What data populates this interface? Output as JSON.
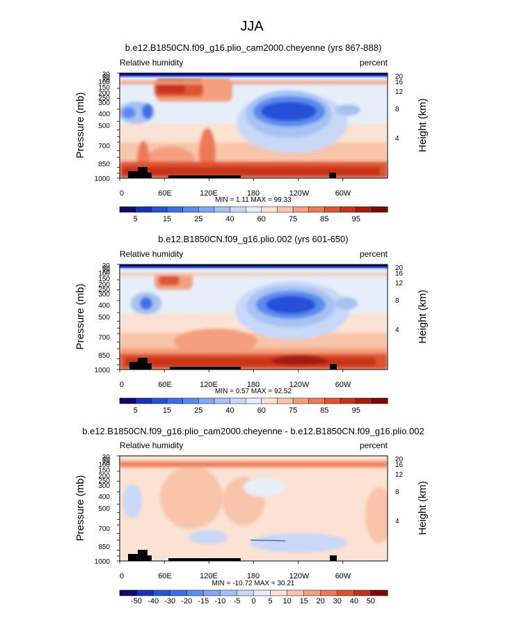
{
  "season": "JJA",
  "axes": {
    "left_label": "Pressure  (mb)",
    "right_label": "Height  (km)",
    "pressure_ticks": [
      "30",
      "50",
      "70",
      "100",
      "150",
      "200",
      "250",
      "300",
      "400",
      "500",
      "700",
      "850",
      "1000"
    ],
    "pressure_values": [
      30,
      50,
      70,
      100,
      150,
      200,
      250,
      300,
      400,
      500,
      700,
      850,
      1000
    ],
    "height_ticks": [
      "20",
      "16",
      "12",
      "8",
      "4"
    ],
    "height_values": [
      20,
      16,
      12,
      8,
      4
    ],
    "lon_ticks": [
      "0",
      "60E",
      "120E",
      "180",
      "120W",
      "60W"
    ],
    "lon_values": [
      0,
      60,
      120,
      180,
      240,
      300
    ],
    "lon_range": [
      0,
      360
    ],
    "pressure_range": [
      30,
      1000
    ]
  },
  "panels": [
    {
      "title": "b.e12.B1850CN.f09_g16.plio_cam2000.cheyenne (yrs 867-888)",
      "variable": "Relative humidity",
      "units": "percent",
      "stats": "MIN =    1.11   MAX =   99.33",
      "kind": "abs"
    },
    {
      "title": "b.e12.B1850CN.f09_g16.plio.002 (yrs 601-650)",
      "variable": "Relative humidity",
      "units": "percent",
      "stats": "MIN =    0.57   MAX =   92.52",
      "kind": "abs"
    },
    {
      "title": "b.e12.B1850CN.f09_g16.plio_cam2000.cheyenne - b.e12.B1850CN.f09_g16.plio.002",
      "variable": "Relative humidity",
      "units": "percent",
      "stats": "MIN = -10.72   MAX =   30.21",
      "kind": "diff"
    }
  ],
  "colorbars": [
    {
      "labels": [
        "5",
        "15",
        "25",
        "40",
        "60",
        "75",
        "85",
        "95"
      ],
      "levels": [
        5,
        10,
        15,
        20,
        25,
        30,
        40,
        50,
        60,
        70,
        75,
        80,
        85,
        90,
        95
      ],
      "colors": [
        "#0c0c72",
        "#1a30b8",
        "#2850d8",
        "#3c6ee8",
        "#5a8cf0",
        "#82a8f0",
        "#a6c2f2",
        "#c8d8f6",
        "#e6eefa",
        "#fbe2d2",
        "#f8c4aa",
        "#f4a080",
        "#ec7a58",
        "#de5432",
        "#c83218",
        "#a51c0c",
        "#7a0a04"
      ]
    },
    {
      "labels": [
        "-50",
        "-40",
        "-30",
        "-20",
        "-15",
        "-10",
        "-5",
        "0",
        "5",
        "10",
        "15",
        "20",
        "30",
        "40",
        "50"
      ],
      "levels": [
        -50,
        -40,
        -30,
        -20,
        -15,
        -10,
        -5,
        0,
        5,
        10,
        15,
        20,
        30,
        40,
        50
      ],
      "colors": [
        "#0c0c72",
        "#1a30b8",
        "#2850d8",
        "#3c6ee8",
        "#5a8cf0",
        "#82a8f0",
        "#a6c2f2",
        "#c8d8f6",
        "#e6eefa",
        "#fbe2d2",
        "#f8c4aa",
        "#f4a080",
        "#ec7a58",
        "#de5432",
        "#c83218",
        "#7a0a04"
      ]
    }
  ],
  "chart_data": [
    {
      "type": "heatmap",
      "title": "b.e12.B1850CN.f09_g16.plio_cam2000.cheyenne (yrs 867-888)",
      "xlabel": "Longitude",
      "ylabel": "Pressure (mb)",
      "xlim": [
        0,
        360
      ],
      "ylim": [
        1000,
        30
      ],
      "z_min": 1.11,
      "z_max": 99.33,
      "features": [
        {
          "lon": 240,
          "p": 390,
          "rh": 5,
          "note": "dry minimum over eastern Pacific"
        },
        {
          "lon": 22,
          "p": 400,
          "rh": 15,
          "note": "dry pocket near 0-40E"
        },
        {
          "lon": 70,
          "p": 190,
          "rh": 90,
          "note": "moist upper-level maximum"
        },
        {
          "lon": 180,
          "p": 920,
          "rh": 85,
          "note": "moist boundary layer"
        }
      ]
    },
    {
      "type": "heatmap",
      "title": "b.e12.B1850CN.f09_g16.plio.002 (yrs 601-650)",
      "xlabel": "Longitude",
      "ylabel": "Pressure (mb)",
      "xlim": [
        0,
        360
      ],
      "ylim": [
        1000,
        30
      ],
      "z_min": 0.57,
      "z_max": 92.52,
      "features": [
        {
          "lon": 240,
          "p": 400,
          "rh": 5,
          "note": "dry minimum over eastern Pacific"
        },
        {
          "lon": 28,
          "p": 410,
          "rh": 15,
          "note": "dry pocket"
        },
        {
          "lon": 60,
          "p": 190,
          "rh": 80,
          "note": "upper-level maximum"
        }
      ]
    },
    {
      "type": "heatmap",
      "title": "b.e12.B1850CN.f09_g16.plio_cam2000.cheyenne - b.e12.B1850CN.f09_g16.plio.002",
      "xlabel": "Longitude",
      "ylabel": "Pressure (mb)",
      "xlim": [
        0,
        360
      ],
      "ylim": [
        1000,
        30
      ],
      "z_min": -10.72,
      "z_max": 30.21,
      "features": [
        {
          "lon": 180,
          "p": 100,
          "rh": 30,
          "note": "positive band near tropopause"
        },
        {
          "lon": 90,
          "p": 300,
          "rh": 5,
          "note": "weak positive anomaly"
        },
        {
          "lon": 160,
          "p": 780,
          "rh": -10,
          "note": "weak negative anomaly"
        }
      ]
    }
  ]
}
